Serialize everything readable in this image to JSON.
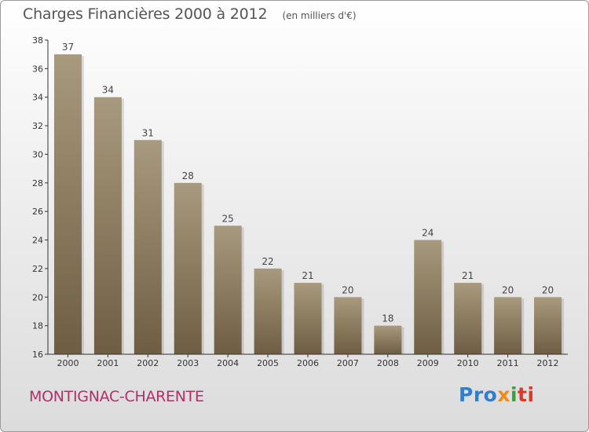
{
  "header": {
    "title": "Charges Financières 2000 à 2012",
    "unit": "(en milliers d'€)"
  },
  "footer": {
    "place": "MONTIGNAC-CHARENTE",
    "logo": [
      "Pro",
      "x",
      "i",
      "ti"
    ]
  },
  "colors": {
    "bar_top": "#a89a7e",
    "bar_bottom": "#6e5d42",
    "axis": "#333333",
    "place_text": "#b0306a"
  },
  "chart_data": {
    "type": "bar",
    "title": "Charges Financières 2000 à 2012",
    "subtitle": "(en milliers d'€)",
    "categories": [
      "2000",
      "2001",
      "2002",
      "2003",
      "2004",
      "2005",
      "2006",
      "2007",
      "2008",
      "2009",
      "2010",
      "2011",
      "2012"
    ],
    "values": [
      37,
      34,
      31,
      28,
      25,
      22,
      21,
      20,
      18,
      24,
      21,
      20,
      20
    ],
    "ylim": [
      16,
      38
    ],
    "yticks": [
      16,
      18,
      20,
      22,
      24,
      26,
      28,
      30,
      32,
      34,
      36,
      38
    ],
    "grid": false,
    "legend": "none"
  }
}
